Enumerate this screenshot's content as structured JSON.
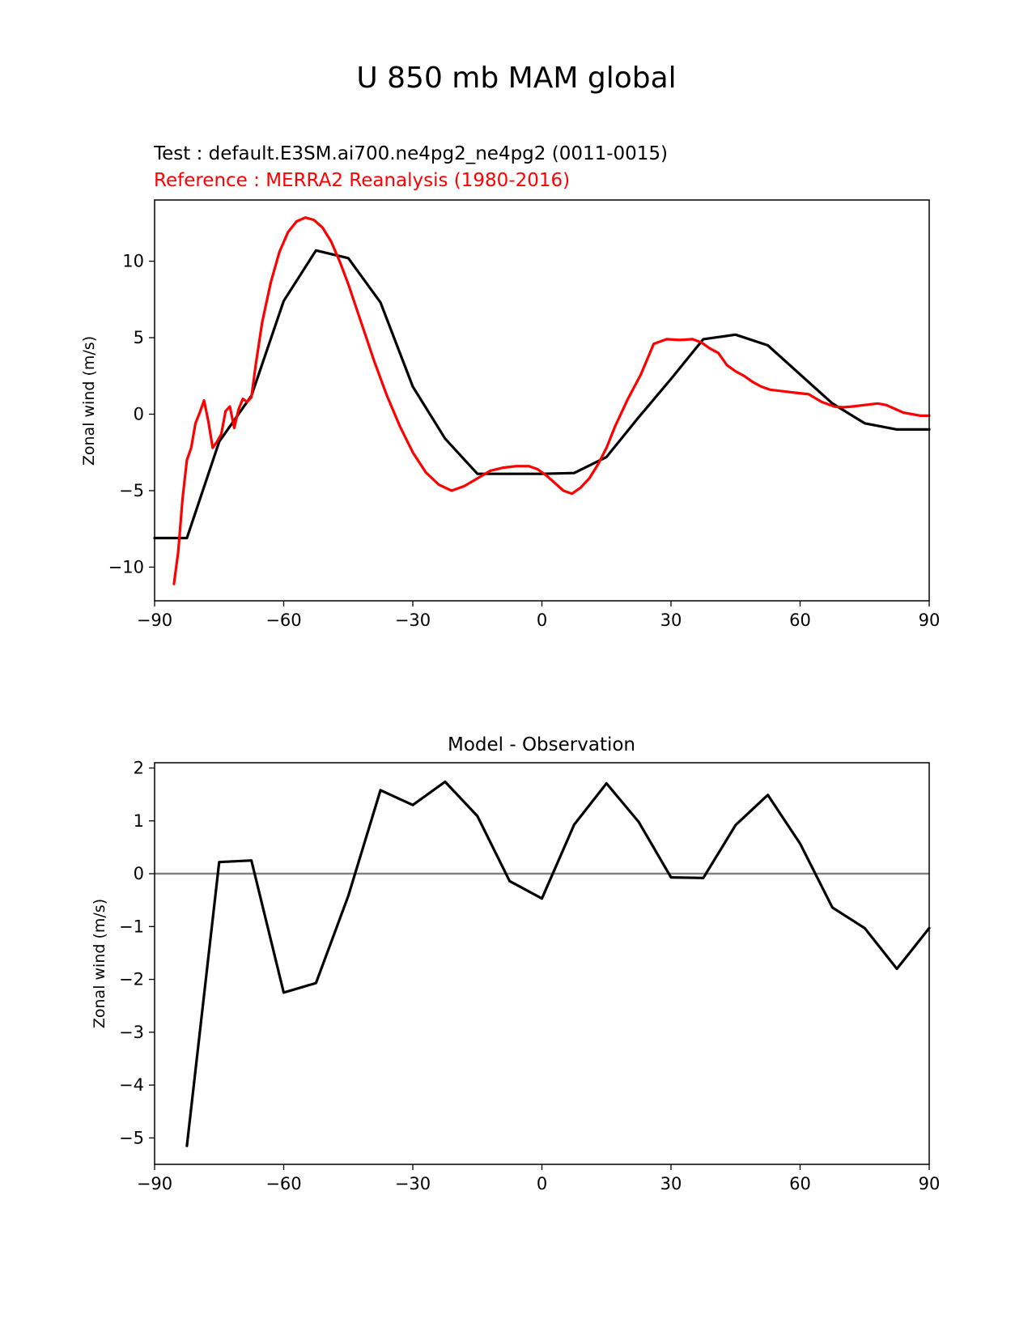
{
  "figure": {
    "title": "U 850 mb MAM global"
  },
  "chart_data": [
    {
      "type": "line",
      "test_label": "Test : default.E3SM.ai700.ne4pg2_ne4pg2 (0011-0015)",
      "reference_label": "Reference : MERRA2 Reanalysis (1980-2016)",
      "xlabel": "",
      "ylabel": "Zonal wind (m/s)",
      "xlim": [
        -90,
        90
      ],
      "ylim": [
        -12.2,
        14.0
      ],
      "xticks": [
        -90,
        -60,
        -30,
        0,
        30,
        60,
        90
      ],
      "xtick_labels": [
        "−90",
        "−60",
        "−30",
        "0",
        "30",
        "60",
        "90"
      ],
      "yticks": [
        -10,
        -5,
        0,
        5,
        10
      ],
      "ytick_labels": [
        "−10",
        "−5",
        "0",
        "5",
        "10"
      ],
      "colors": {
        "test": "#000000",
        "reference": "#ff0000"
      },
      "series": [
        {
          "name": "Test",
          "color": "#000000",
          "x": [
            -90,
            -82.5,
            -75,
            -67.5,
            -60,
            -52.5,
            -45,
            -37.5,
            -30,
            -22.5,
            -15,
            -7.5,
            0,
            7.5,
            15,
            22.5,
            30,
            37.5,
            45,
            52.5,
            60,
            67.5,
            75,
            82.5,
            90
          ],
          "y": [
            -8.1,
            -8.1,
            -1.8,
            1.2,
            7.4,
            10.7,
            10.2,
            7.3,
            1.8,
            -1.6,
            -3.9,
            -3.9,
            -3.9,
            -3.85,
            -2.8,
            -0.2,
            2.3,
            4.9,
            5.2,
            4.5,
            2.6,
            0.7,
            -0.6,
            -1.0,
            -1.0
          ]
        },
        {
          "name": "Reference",
          "color": "#ff0000",
          "x": [
            -85.5,
            -84.5,
            -83.5,
            -82.5,
            -81.5,
            -80.5,
            -79.5,
            -78.5,
            -77.5,
            -76.5,
            -75.5,
            -74.5,
            -73.5,
            -72.5,
            -71.5,
            -70.5,
            -69.5,
            -68.5,
            -67.5,
            -66.5,
            -65,
            -63,
            -61,
            -59,
            -57,
            -55,
            -53,
            -51,
            -49,
            -47,
            -45,
            -42,
            -39,
            -36,
            -33,
            -30,
            -27,
            -24,
            -21,
            -18,
            -15,
            -12,
            -9,
            -6,
            -3,
            -1,
            1,
            3,
            5,
            7,
            9,
            11,
            13,
            15,
            17,
            20,
            23,
            26,
            29,
            32,
            35,
            37,
            39,
            41,
            42,
            43,
            45,
            47,
            49,
            51,
            53,
            56,
            59,
            62,
            65,
            68,
            70,
            72,
            75,
            78,
            80,
            82,
            84,
            86,
            88,
            90
          ],
          "y": [
            -11.1,
            -9.0,
            -5.5,
            -3.0,
            -2.2,
            -0.6,
            0.1,
            0.9,
            -0.5,
            -2.2,
            -1.8,
            -1.3,
            0.2,
            0.5,
            -0.9,
            0.3,
            1.0,
            0.8,
            1.1,
            3.2,
            6.0,
            8.6,
            10.6,
            11.9,
            12.6,
            12.85,
            12.7,
            12.2,
            11.3,
            10.0,
            8.5,
            6.0,
            3.5,
            1.2,
            -0.8,
            -2.5,
            -3.8,
            -4.6,
            -5.0,
            -4.7,
            -4.2,
            -3.7,
            -3.5,
            -3.4,
            -3.4,
            -3.6,
            -4.0,
            -4.5,
            -5.0,
            -5.2,
            -4.8,
            -4.2,
            -3.3,
            -2.2,
            -0.8,
            1.0,
            2.6,
            4.6,
            4.9,
            4.85,
            4.9,
            4.7,
            4.3,
            4.0,
            3.6,
            3.2,
            2.8,
            2.5,
            2.1,
            1.8,
            1.6,
            1.5,
            1.4,
            1.3,
            0.8,
            0.5,
            0.45,
            0.5,
            0.6,
            0.7,
            0.6,
            0.35,
            0.1,
            0.0,
            -0.1,
            -0.1
          ]
        }
      ]
    },
    {
      "type": "line",
      "title": "Model - Observation",
      "xlabel": "",
      "ylabel": "Zonal wind (m/s)",
      "xlim": [
        -90,
        90
      ],
      "ylim": [
        -5.5,
        2.1
      ],
      "xticks": [
        -90,
        -60,
        -30,
        0,
        30,
        60,
        90
      ],
      "xtick_labels": [
        "−90",
        "−60",
        "−30",
        "0",
        "30",
        "60",
        "90"
      ],
      "yticks": [
        -5,
        -4,
        -3,
        -2,
        -1,
        0,
        1,
        2
      ],
      "ytick_labels": [
        "−5",
        "−4",
        "−3",
        "−2",
        "−1",
        "0",
        "1",
        "2"
      ],
      "zero_line_color": "#808080",
      "series": [
        {
          "name": "Model - Observation",
          "color": "#000000",
          "x": [
            -82.5,
            -75,
            -67.5,
            -60,
            -52.5,
            -45,
            -37.5,
            -30,
            -22.5,
            -15,
            -7.5,
            0,
            7.5,
            15,
            22.5,
            30,
            37.5,
            45,
            52.5,
            60,
            67.5,
            75,
            82.5,
            90
          ],
          "y": [
            -5.15,
            0.22,
            0.25,
            -2.25,
            -2.07,
            -0.42,
            1.58,
            1.3,
            1.74,
            1.09,
            -0.14,
            -0.47,
            0.93,
            1.71,
            0.98,
            -0.07,
            -0.08,
            0.92,
            1.49,
            0.57,
            -0.64,
            -1.03,
            -1.8,
            -1.03
          ]
        }
      ]
    }
  ]
}
